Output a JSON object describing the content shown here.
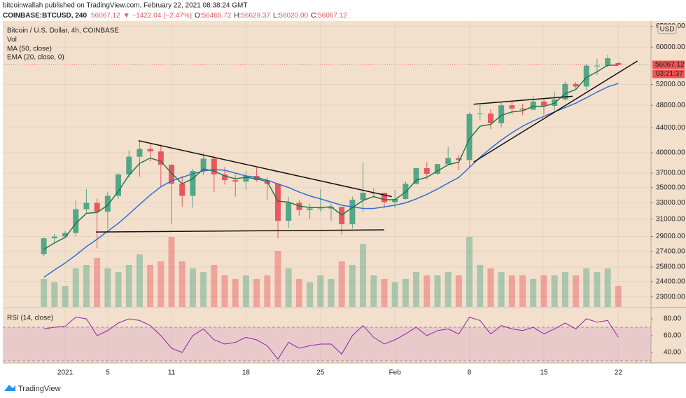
{
  "header": {
    "publisher": "bitcoinwallah published on TradingView.com, February 22, 2021 08:38:24 GMT",
    "symbol": "COINBASE:BTCUSD, 240",
    "price": "56067.12",
    "change": "▼ −1422.04 (−2.47%)",
    "quote": [
      {
        "label": "O:",
        "value": "56465.72"
      },
      {
        "label": "H:",
        "value": "56629.37"
      },
      {
        "label": "L:",
        "value": "56020.00"
      },
      {
        "label": "C:",
        "value": "56067.12"
      }
    ]
  },
  "chart_data": {
    "type": "candlestick",
    "title": "Bitcoin / U.S. Dollar, 4h, COINBASE",
    "y_unit": "USD",
    "up_color": "#53a687",
    "down_color": "#e8585f",
    "log_scale": true,
    "grid": true,
    "x": [
      -2,
      -1,
      0,
      1,
      2,
      3,
      4,
      5,
      6,
      7,
      8,
      9,
      10,
      11,
      12,
      13,
      14,
      15,
      16,
      17,
      18,
      19,
      20,
      21,
      22,
      23,
      24,
      25,
      26,
      27,
      28,
      29,
      30,
      31,
      32,
      33,
      34,
      35,
      36,
      37,
      38,
      39,
      40,
      41,
      42,
      43,
      44,
      45,
      46,
      47,
      48,
      49,
      50,
      51,
      52
    ],
    "open": [
      27100,
      28800,
      29000,
      29400,
      32200,
      33000,
      31900,
      33900,
      36800,
      39400,
      40600,
      40200,
      38200,
      35500,
      33900,
      37300,
      39100,
      36800,
      36000,
      35800,
      36600,
      36000,
      35500,
      30800,
      33000,
      32100,
      32300,
      32300,
      32500,
      30400,
      33400,
      34300,
      34300,
      33100,
      33500,
      35500,
      37700,
      36900,
      38300,
      39200,
      38900,
      46400,
      46500,
      44800,
      48000,
      47400,
      47200,
      48700,
      47900,
      49100,
      52100,
      51600,
      55900,
      55900,
      56465.72
    ],
    "high": [
      28900,
      29300,
      29600,
      33300,
      34800,
      33600,
      34400,
      37000,
      40400,
      41900,
      41300,
      41300,
      38300,
      36600,
      37600,
      40000,
      39600,
      37900,
      36800,
      37300,
      37800,
      36400,
      35600,
      33800,
      33400,
      32900,
      34800,
      32900,
      32500,
      33800,
      38500,
      34900,
      34300,
      34700,
      35800,
      37800,
      38600,
      38300,
      40900,
      39700,
      46700,
      48100,
      47300,
      48600,
      48900,
      48200,
      49700,
      49000,
      50600,
      52600,
      52500,
      56300,
      57400,
      58300,
      56629.37
    ],
    "low": [
      26900,
      28200,
      28800,
      29000,
      31800,
      27700,
      29900,
      33500,
      36300,
      36500,
      38700,
      35100,
      30400,
      32500,
      32400,
      36700,
      34400,
      35400,
      33800,
      34700,
      35800,
      33400,
      28800,
      30000,
      31400,
      31000,
      31900,
      30800,
      29200,
      29900,
      31900,
      33800,
      32300,
      32300,
      33400,
      35400,
      36100,
      36700,
      38200,
      37400,
      37900,
      45300,
      43800,
      44100,
      46300,
      46200,
      47100,
      46300,
      47100,
      48900,
      50900,
      50900,
      53900,
      55500,
      56020.0
    ],
    "close": [
      28800,
      29000,
      29400,
      32200,
      33000,
      31900,
      33900,
      36800,
      39400,
      40600,
      40200,
      38200,
      35500,
      33900,
      37300,
      39100,
      36800,
      36000,
      35800,
      36600,
      36000,
      35500,
      30800,
      33000,
      32100,
      32300,
      32300,
      32500,
      30400,
      33400,
      34300,
      34300,
      33100,
      33500,
      35500,
      37700,
      36900,
      38300,
      39200,
      38900,
      46400,
      46500,
      44800,
      48000,
      47400,
      47200,
      48700,
      47900,
      49100,
      52100,
      51600,
      55900,
      55900,
      57500,
      56067.12
    ],
    "xlim": [
      -5.86,
      55.07
    ],
    "xticks": [
      {
        "value": 0,
        "label": "2021"
      },
      {
        "value": 4,
        "label": "5"
      },
      {
        "value": 10,
        "label": "11"
      },
      {
        "value": 17,
        "label": "18"
      },
      {
        "value": 24,
        "label": "25"
      },
      {
        "value": 31,
        "label": "Feb"
      },
      {
        "value": 38,
        "label": "8"
      },
      {
        "value": 45,
        "label": "15"
      },
      {
        "value": 52,
        "label": "22"
      }
    ],
    "ylim": [
      22130,
      66340
    ],
    "yticks": [
      {
        "value": 23000,
        "label": "23000.00"
      },
      {
        "value": 24400,
        "label": "24400.00"
      },
      {
        "value": 25800,
        "label": "25800.00"
      },
      {
        "value": 27400,
        "label": "27400.00"
      },
      {
        "value": 29000,
        "label": "29000.00"
      },
      {
        "value": 31000,
        "label": "31000.00"
      },
      {
        "value": 33000,
        "label": "33000.00"
      },
      {
        "value": 35000,
        "label": "35000.00"
      },
      {
        "value": 37000,
        "label": "37000.00"
      },
      {
        "value": 40000,
        "label": "40000.00"
      },
      {
        "value": 44000,
        "label": "44000.00"
      },
      {
        "value": 48000,
        "label": "48000.00"
      },
      {
        "value": 52000,
        "label": "52000.00"
      },
      {
        "value": 60000,
        "label": "60000.00"
      },
      {
        "value": 65000,
        "label": "65000.00"
      }
    ],
    "volume": {
      "name": "Vol",
      "ylim": [
        0,
        110
      ],
      "values": [
        40,
        35,
        30,
        55,
        60,
        70,
        55,
        50,
        60,
        75,
        60,
        65,
        100,
        65,
        55,
        50,
        60,
        45,
        40,
        45,
        40,
        45,
        80,
        55,
        40,
        35,
        45,
        40,
        65,
        60,
        90,
        45,
        40,
        35,
        40,
        50,
        45,
        45,
        50,
        45,
        100,
        60,
        55,
        50,
        45,
        45,
        40,
        45,
        45,
        50,
        45,
        55,
        50,
        55,
        30
      ]
    },
    "series": [
      {
        "name": "MA (50, close)",
        "color": "#2f6fd6",
        "values": [
          24800,
          25500,
          26200,
          27000,
          27900,
          28700,
          29600,
          30500,
          31600,
          32800,
          34000,
          35100,
          35900,
          36400,
          36900,
          37300,
          37500,
          37400,
          37000,
          36600,
          36400,
          36000,
          35500,
          35000,
          34400,
          33900,
          33500,
          33100,
          32700,
          32500,
          32300,
          32300,
          32500,
          32700,
          33000,
          33500,
          34100,
          34800,
          35600,
          36400,
          37800,
          39300,
          40700,
          42000,
          43200,
          44300,
          45200,
          46000,
          46800,
          47600,
          48400,
          49400,
          50500,
          51500,
          52200
        ]
      },
      {
        "name": "EMA (20, close, 0)",
        "color": "#1f7a4c",
        "values": [
          27600,
          28300,
          28900,
          30500,
          31700,
          31800,
          32700,
          34500,
          36700,
          38400,
          39200,
          38700,
          37000,
          35500,
          36200,
          37600,
          37300,
          36600,
          36200,
          36400,
          36200,
          35800,
          33200,
          33100,
          32600,
          32400,
          32400,
          32500,
          31500,
          32400,
          33300,
          33800,
          33400,
          33400,
          34400,
          36000,
          36400,
          37300,
          38200,
          38600,
          42200,
          44300,
          44600,
          46200,
          46800,
          47000,
          47800,
          47800,
          48400,
          50200,
          51000,
          53400,
          54600,
          56000,
          56000
        ]
      }
    ],
    "last_price": 56067.12,
    "countdown": "03:21:37",
    "drawings": [
      {
        "x": [
          6.9,
          30.7
        ],
        "y": [
          41900,
          33800
        ]
      },
      {
        "x": [
          2.9,
          30.0
        ],
        "y": [
          29500,
          29750
        ]
      },
      {
        "x": [
          38.4,
          47.7
        ],
        "y": [
          48200,
          49700
        ]
      },
      {
        "x": [
          38.4,
          53.8
        ],
        "y": [
          38600,
          56900
        ]
      }
    ],
    "rsi": {
      "name": "RSI (14, close)",
      "color": "#8e24aa",
      "ylim": [
        28.3,
        92.5
      ],
      "band": [
        30,
        70
      ],
      "yticks": [
        {
          "value": 80,
          "label": "80.00"
        },
        {
          "value": 60,
          "label": "60.00"
        },
        {
          "value": 40,
          "label": "40.00"
        }
      ],
      "values": [
        68,
        70,
        71,
        82,
        80,
        60,
        66,
        75,
        80,
        78,
        72,
        60,
        45,
        40,
        60,
        68,
        55,
        50,
        52,
        58,
        55,
        48,
        32,
        52,
        45,
        48,
        50,
        50,
        38,
        60,
        72,
        58,
        50,
        55,
        62,
        70,
        60,
        66,
        68,
        62,
        82,
        78,
        62,
        72,
        68,
        66,
        70,
        62,
        68,
        75,
        68,
        80,
        76,
        78,
        58
      ]
    }
  },
  "footer": {
    "brand": "TradingView"
  }
}
